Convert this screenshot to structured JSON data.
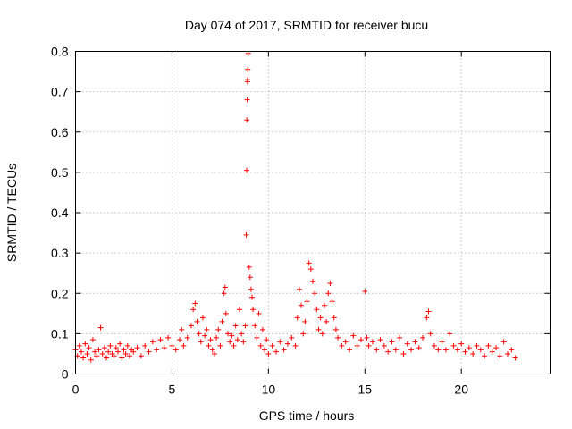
{
  "chart_data": {
    "type": "scatter",
    "title": "Day 074 of 2017, SRMTID for receiver bucu",
    "xlabel": "GPS time / hours",
    "ylabel": "SRMTID / TECUs",
    "xlim": [
      0,
      24.6
    ],
    "ylim": [
      0,
      0.8
    ],
    "xticks": [
      0,
      5,
      10,
      15,
      20
    ],
    "xtick_labels": [
      "0",
      "5",
      "10",
      "15",
      "20"
    ],
    "yticks": [
      0,
      0.1,
      0.2,
      0.3,
      0.4,
      0.5,
      0.6,
      0.7,
      0.8
    ],
    "ytick_labels": [
      "0",
      "0.1",
      "0.2",
      "0.3",
      "0.4",
      "0.5",
      "0.6",
      "0.7",
      "0.8"
    ],
    "grid": true,
    "marker": "+",
    "marker_color": "#ff0000",
    "series": [
      {
        "name": "SRMTID",
        "points": [
          [
            0.0,
            0.06
          ],
          [
            0.1,
            0.045
          ],
          [
            0.2,
            0.07
          ],
          [
            0.3,
            0.055
          ],
          [
            0.4,
            0.04
          ],
          [
            0.5,
            0.075
          ],
          [
            0.6,
            0.05
          ],
          [
            0.7,
            0.065
          ],
          [
            0.8,
            0.035
          ],
          [
            0.9,
            0.085
          ],
          [
            1.0,
            0.055
          ],
          [
            1.1,
            0.045
          ],
          [
            1.2,
            0.06
          ],
          [
            1.3,
            0.115
          ],
          [
            1.4,
            0.05
          ],
          [
            1.5,
            0.065
          ],
          [
            1.6,
            0.04
          ],
          [
            1.7,
            0.055
          ],
          [
            1.8,
            0.07
          ],
          [
            1.9,
            0.05
          ],
          [
            2.0,
            0.045
          ],
          [
            2.1,
            0.065
          ],
          [
            2.2,
            0.055
          ],
          [
            2.3,
            0.075
          ],
          [
            2.4,
            0.04
          ],
          [
            2.5,
            0.06
          ],
          [
            2.6,
            0.05
          ],
          [
            2.7,
            0.07
          ],
          [
            2.8,
            0.045
          ],
          [
            2.9,
            0.06
          ],
          [
            3.0,
            0.055
          ],
          [
            3.2,
            0.065
          ],
          [
            3.4,
            0.045
          ],
          [
            3.6,
            0.07
          ],
          [
            3.8,
            0.055
          ],
          [
            4.0,
            0.08
          ],
          [
            4.2,
            0.06
          ],
          [
            4.4,
            0.085
          ],
          [
            4.6,
            0.065
          ],
          [
            4.8,
            0.09
          ],
          [
            5.0,
            0.07
          ],
          [
            5.2,
            0.06
          ],
          [
            5.4,
            0.085
          ],
          [
            5.5,
            0.11
          ],
          [
            5.6,
            0.07
          ],
          [
            5.8,
            0.09
          ],
          [
            6.0,
            0.12
          ],
          [
            6.1,
            0.16
          ],
          [
            6.2,
            0.175
          ],
          [
            6.3,
            0.13
          ],
          [
            6.4,
            0.1
          ],
          [
            6.5,
            0.08
          ],
          [
            6.6,
            0.14
          ],
          [
            6.7,
            0.095
          ],
          [
            6.8,
            0.11
          ],
          [
            6.9,
            0.07
          ],
          [
            7.0,
            0.085
          ],
          [
            7.1,
            0.06
          ],
          [
            7.2,
            0.05
          ],
          [
            7.3,
            0.09
          ],
          [
            7.4,
            0.11
          ],
          [
            7.5,
            0.07
          ],
          [
            7.6,
            0.13
          ],
          [
            7.7,
            0.2
          ],
          [
            7.75,
            0.215
          ],
          [
            7.8,
            0.15
          ],
          [
            7.9,
            0.1
          ],
          [
            8.0,
            0.08
          ],
          [
            8.1,
            0.095
          ],
          [
            8.2,
            0.07
          ],
          [
            8.3,
            0.12
          ],
          [
            8.4,
            0.085
          ],
          [
            8.5,
            0.16
          ],
          [
            8.6,
            0.1
          ],
          [
            8.7,
            0.08
          ],
          [
            8.8,
            0.12
          ],
          [
            8.85,
            0.345
          ],
          [
            8.87,
            0.505
          ],
          [
            8.88,
            0.63
          ],
          [
            8.9,
            0.68
          ],
          [
            8.91,
            0.725
          ],
          [
            8.92,
            0.73
          ],
          [
            8.93,
            0.755
          ],
          [
            8.95,
            0.795
          ],
          [
            9.0,
            0.265
          ],
          [
            9.05,
            0.24
          ],
          [
            9.1,
            0.21
          ],
          [
            9.15,
            0.19
          ],
          [
            9.2,
            0.16
          ],
          [
            9.3,
            0.12
          ],
          [
            9.4,
            0.09
          ],
          [
            9.5,
            0.15
          ],
          [
            9.6,
            0.07
          ],
          [
            9.7,
            0.11
          ],
          [
            9.8,
            0.06
          ],
          [
            9.9,
            0.085
          ],
          [
            10.0,
            0.05
          ],
          [
            10.2,
            0.07
          ],
          [
            10.4,
            0.055
          ],
          [
            10.6,
            0.08
          ],
          [
            10.8,
            0.06
          ],
          [
            11.0,
            0.075
          ],
          [
            11.2,
            0.09
          ],
          [
            11.4,
            0.07
          ],
          [
            11.5,
            0.14
          ],
          [
            11.6,
            0.21
          ],
          [
            11.7,
            0.17
          ],
          [
            11.8,
            0.1
          ],
          [
            11.9,
            0.13
          ],
          [
            12.0,
            0.18
          ],
          [
            12.1,
            0.275
          ],
          [
            12.2,
            0.26
          ],
          [
            12.3,
            0.23
          ],
          [
            12.4,
            0.2
          ],
          [
            12.5,
            0.16
          ],
          [
            12.6,
            0.11
          ],
          [
            12.7,
            0.14
          ],
          [
            12.8,
            0.1
          ],
          [
            12.9,
            0.17
          ],
          [
            13.0,
            0.13
          ],
          [
            13.1,
            0.2
          ],
          [
            13.2,
            0.225
          ],
          [
            13.3,
            0.18
          ],
          [
            13.4,
            0.14
          ],
          [
            13.5,
            0.11
          ],
          [
            13.6,
            0.09
          ],
          [
            13.8,
            0.07
          ],
          [
            14.0,
            0.08
          ],
          [
            14.2,
            0.06
          ],
          [
            14.4,
            0.095
          ],
          [
            14.6,
            0.07
          ],
          [
            14.8,
            0.085
          ],
          [
            15.0,
            0.205
          ],
          [
            15.1,
            0.09
          ],
          [
            15.2,
            0.07
          ],
          [
            15.4,
            0.08
          ],
          [
            15.6,
            0.06
          ],
          [
            15.8,
            0.085
          ],
          [
            16.0,
            0.07
          ],
          [
            16.2,
            0.055
          ],
          [
            16.4,
            0.08
          ],
          [
            16.6,
            0.06
          ],
          [
            16.8,
            0.09
          ],
          [
            17.0,
            0.05
          ],
          [
            17.2,
            0.075
          ],
          [
            17.4,
            0.06
          ],
          [
            17.6,
            0.08
          ],
          [
            17.8,
            0.065
          ],
          [
            18.0,
            0.09
          ],
          [
            18.2,
            0.14
          ],
          [
            18.3,
            0.155
          ],
          [
            18.4,
            0.1
          ],
          [
            18.6,
            0.07
          ],
          [
            18.8,
            0.06
          ],
          [
            19.0,
            0.08
          ],
          [
            19.2,
            0.06
          ],
          [
            19.4,
            0.1
          ],
          [
            19.6,
            0.07
          ],
          [
            19.8,
            0.06
          ],
          [
            20.0,
            0.075
          ],
          [
            20.2,
            0.055
          ],
          [
            20.4,
            0.065
          ],
          [
            20.6,
            0.05
          ],
          [
            20.8,
            0.07
          ],
          [
            21.0,
            0.06
          ],
          [
            21.2,
            0.045
          ],
          [
            21.4,
            0.07
          ],
          [
            21.6,
            0.055
          ],
          [
            21.8,
            0.065
          ],
          [
            22.0,
            0.045
          ],
          [
            22.2,
            0.08
          ],
          [
            22.4,
            0.05
          ],
          [
            22.6,
            0.06
          ],
          [
            22.8,
            0.04
          ]
        ]
      }
    ]
  }
}
